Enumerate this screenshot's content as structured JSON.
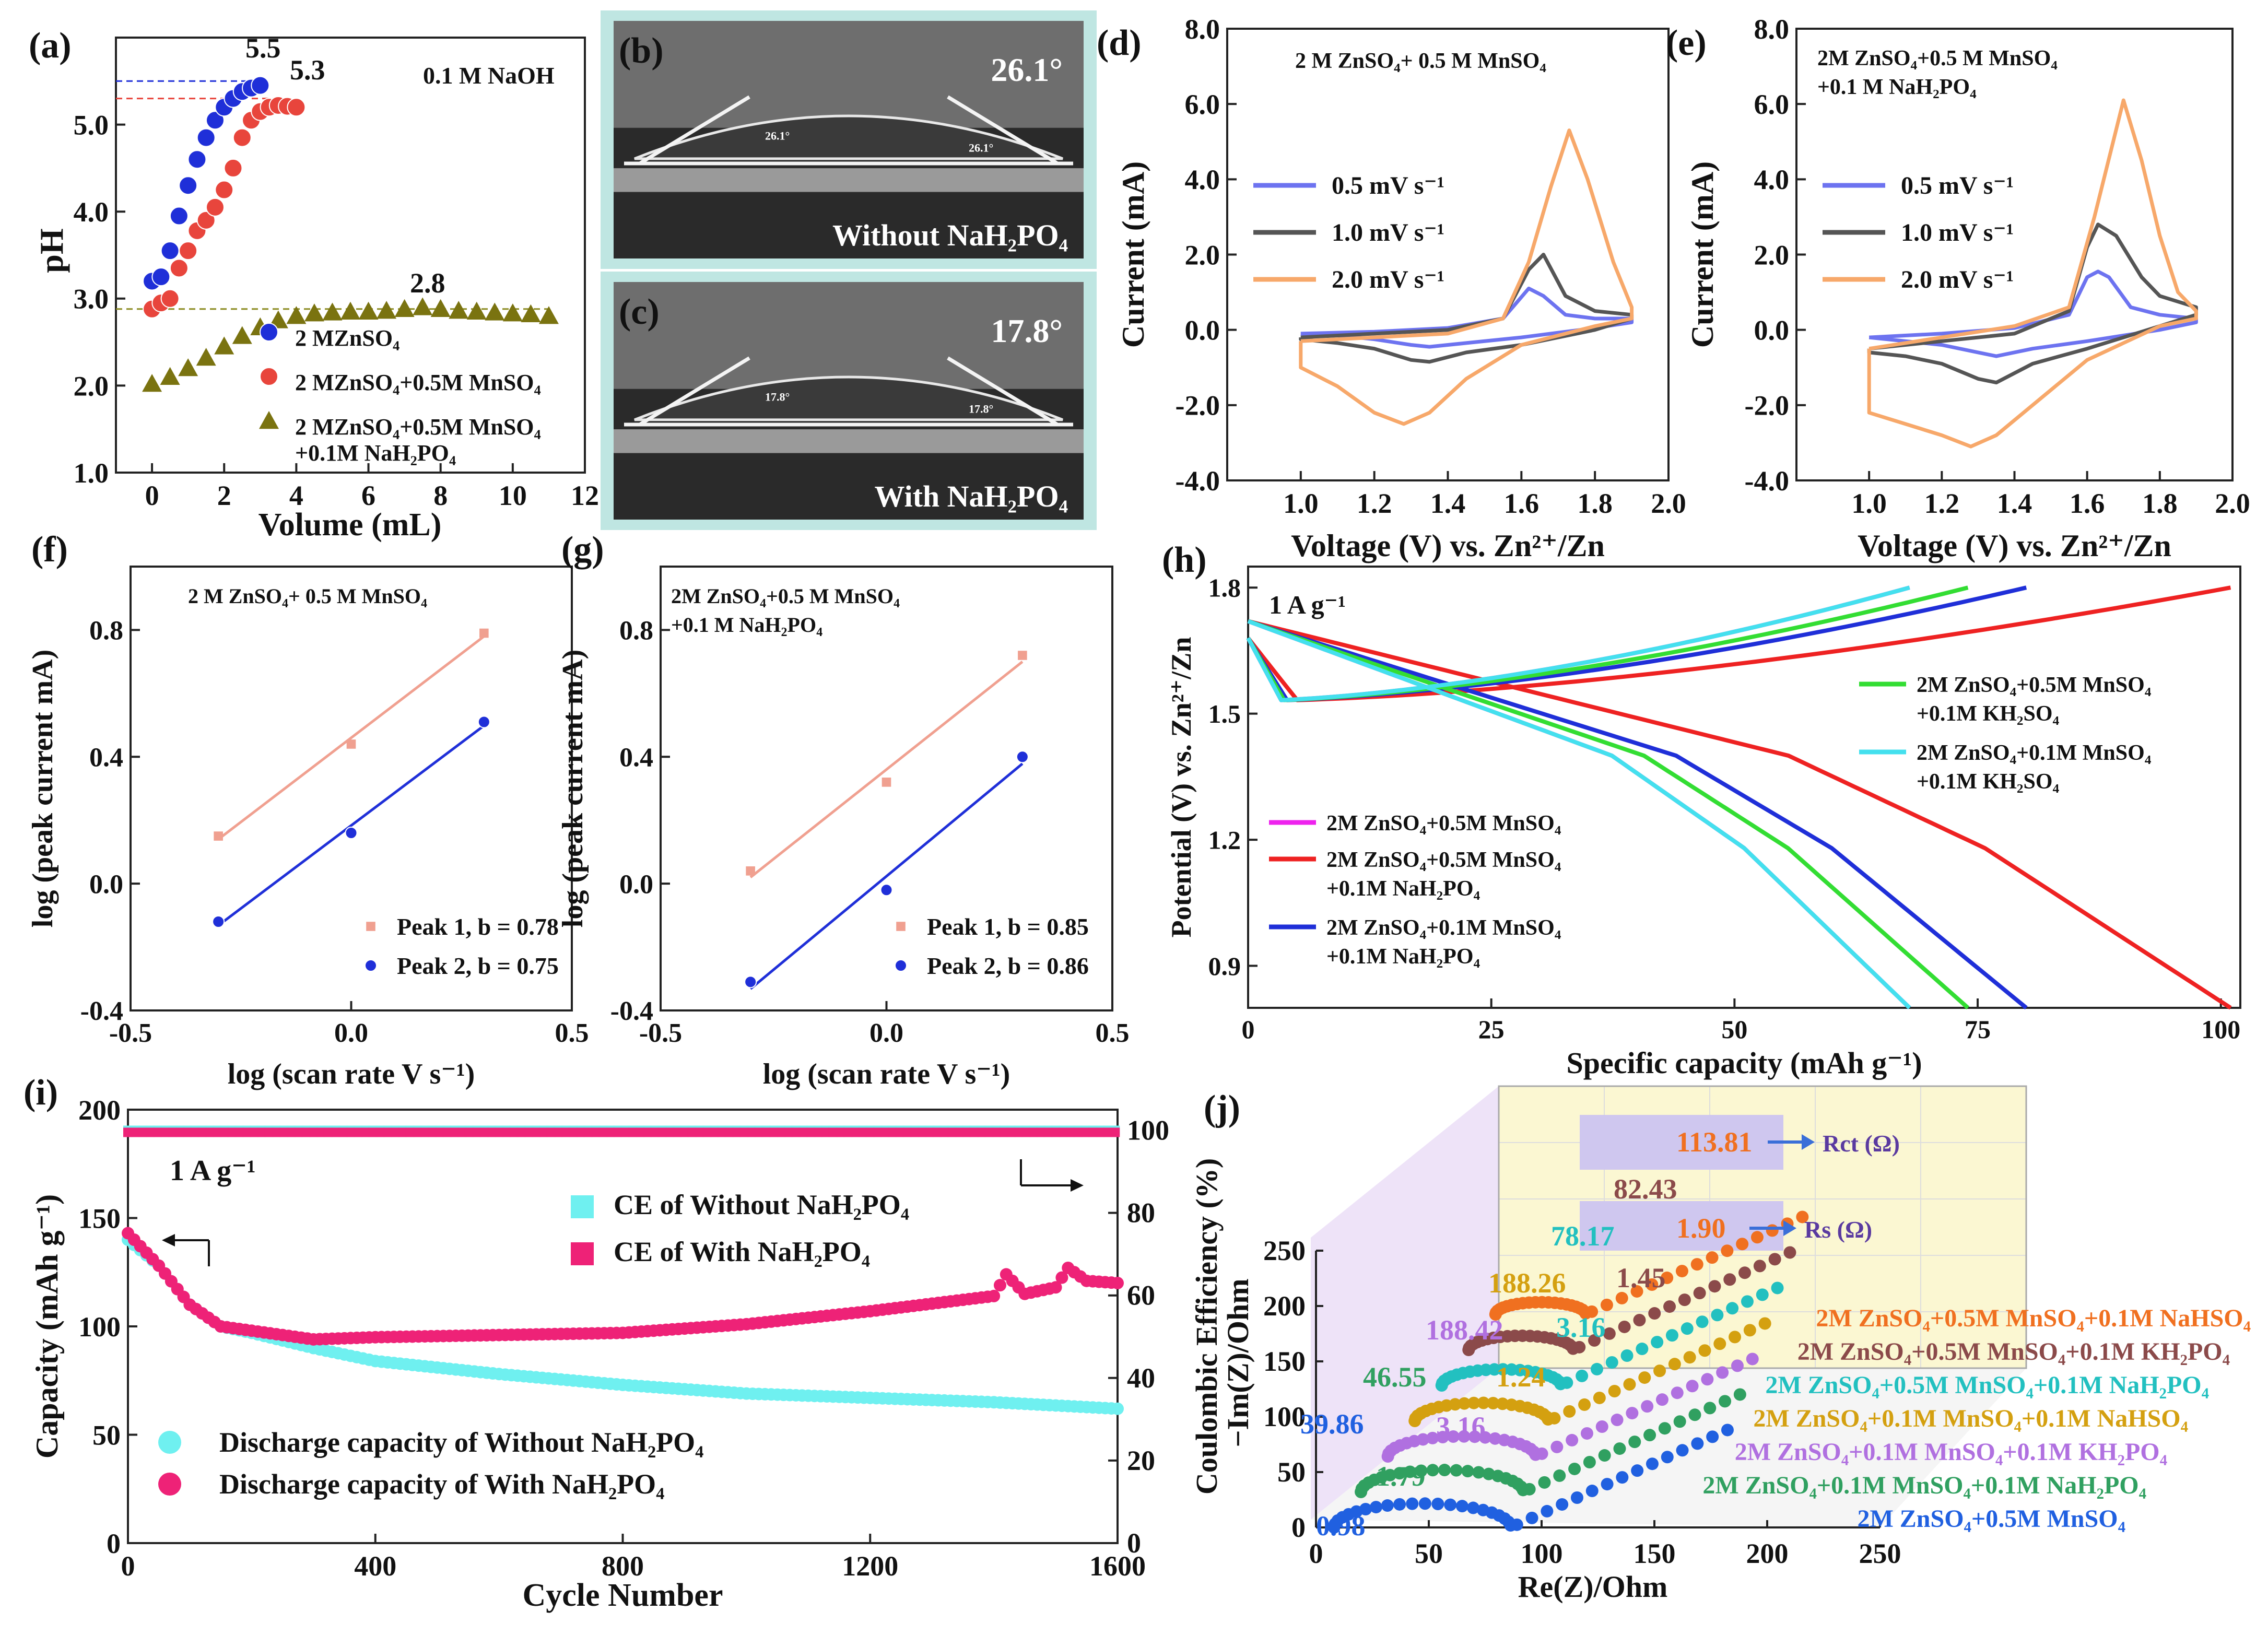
{
  "chart_data": [
    {
      "panel": "(a)",
      "type": "scatter",
      "title": "0.1 M NaOH",
      "xlabel": "Volume (mL)",
      "ylabel": "pH",
      "xlim": [
        -1,
        12
      ],
      "ylim": [
        1,
        6
      ],
      "xticks": [
        "0",
        "2",
        "4",
        "6",
        "8",
        "10",
        "12"
      ],
      "yticks": [
        "1.0",
        "2.0",
        "3.0",
        "4.0",
        "5.0"
      ],
      "annotations": [
        "5.5",
        "5.3",
        "2.8"
      ],
      "series": [
        {
          "name": "2 MZnSO₄",
          "color": "#1f2fd8",
          "marker": "circle",
          "x": [
            0,
            0.25,
            0.5,
            0.75,
            1,
            1.25,
            1.5,
            1.75,
            2,
            2.25,
            2.5,
            2.75,
            3
          ],
          "y": [
            3.2,
            3.25,
            3.55,
            3.95,
            4.3,
            4.6,
            4.85,
            5.05,
            5.2,
            5.3,
            5.38,
            5.42,
            5.45
          ]
        },
        {
          "name": "2 MZnSO₄+0.5M MnSO₄",
          "color": "#e8453c",
          "marker": "circle",
          "x": [
            0,
            0.25,
            0.5,
            0.75,
            1,
            1.25,
            1.5,
            1.75,
            2,
            2.25,
            2.5,
            2.75,
            3,
            3.25,
            3.5,
            3.75,
            4
          ],
          "y": [
            2.88,
            2.95,
            3.0,
            3.35,
            3.55,
            3.78,
            3.9,
            4.05,
            4.25,
            4.5,
            4.85,
            5.05,
            5.15,
            5.2,
            5.22,
            5.21,
            5.2
          ]
        },
        {
          "name": "2 MZnSO₄+0.5M MnSO₄ +0.1M NaH₂PO₄",
          "color": "#7a7310",
          "marker": "triangle",
          "x": [
            0,
            0.5,
            1,
            1.5,
            2,
            2.5,
            3,
            3.5,
            4,
            4.5,
            5,
            5.5,
            6,
            6.5,
            7,
            7.5,
            8,
            8.5,
            9,
            9.5,
            10,
            10.5,
            11
          ],
          "y": [
            2.02,
            2.1,
            2.2,
            2.32,
            2.45,
            2.57,
            2.67,
            2.75,
            2.8,
            2.83,
            2.84,
            2.85,
            2.85,
            2.86,
            2.88,
            2.9,
            2.88,
            2.86,
            2.85,
            2.84,
            2.83,
            2.82,
            2.8
          ]
        }
      ]
    },
    {
      "panel": "(b)",
      "type": "image",
      "angle_label": "26.1°",
      "small_labels": [
        "26.1°",
        "26.1°"
      ],
      "caption": "Without NaH₂PO₄"
    },
    {
      "panel": "(c)",
      "type": "image",
      "angle_label": "17.8°",
      "small_labels": [
        "17.8°",
        "17.8°"
      ],
      "caption": "With NaH₂PO₄"
    },
    {
      "panel": "(d)",
      "type": "line",
      "title": "2 M ZnSO₄+ 0.5 M MnSO₄",
      "xlabel": "Voltage (V) vs. Zn²⁺/Zn",
      "ylabel": "Current (mA)",
      "xlim": [
        0.8,
        2.0
      ],
      "ylim": [
        -4,
        8
      ],
      "xticks": [
        "1.0",
        "1.2",
        "1.4",
        "1.6",
        "1.8",
        "2.0"
      ],
      "yticks": [
        "-4.0",
        "-2.0",
        "0.0",
        "2.0",
        "4.0",
        "6.0",
        "8.0"
      ],
      "series": [
        {
          "name": "0.5 mV s⁻¹",
          "color": "#6d73f0",
          "x": [
            1.0,
            1.2,
            1.4,
            1.55,
            1.62,
            1.66,
            1.72,
            1.8,
            1.9,
            1.9,
            1.8,
            1.6,
            1.45,
            1.35,
            1.3,
            1.2,
            1.1,
            1.0
          ],
          "y": [
            -0.1,
            -0.05,
            0.05,
            0.3,
            1.1,
            0.9,
            0.4,
            0.3,
            0.3,
            0.2,
            0.05,
            -0.2,
            -0.35,
            -0.45,
            -0.4,
            -0.25,
            -0.15,
            -0.1
          ]
        },
        {
          "name": "1.0 mV s⁻¹",
          "color": "#555555",
          "x": [
            1.0,
            1.2,
            1.4,
            1.55,
            1.62,
            1.66,
            1.72,
            1.8,
            1.9,
            1.9,
            1.8,
            1.6,
            1.45,
            1.35,
            1.3,
            1.2,
            1.1,
            1.0
          ],
          "y": [
            -0.2,
            -0.1,
            0.0,
            0.3,
            1.6,
            2.0,
            0.9,
            0.5,
            0.4,
            0.3,
            0.0,
            -0.4,
            -0.6,
            -0.85,
            -0.8,
            -0.5,
            -0.35,
            -0.25
          ]
        },
        {
          "name": "2.0 mV s⁻¹",
          "color": "#f7a86a",
          "x": [
            1.0,
            1.2,
            1.4,
            1.55,
            1.62,
            1.68,
            1.73,
            1.78,
            1.85,
            1.9,
            1.9,
            1.8,
            1.6,
            1.45,
            1.35,
            1.28,
            1.2,
            1.1,
            1.0
          ],
          "y": [
            -0.3,
            -0.2,
            -0.1,
            0.3,
            1.8,
            3.8,
            5.3,
            4.0,
            1.8,
            0.6,
            0.3,
            0.1,
            -0.4,
            -1.3,
            -2.2,
            -2.5,
            -2.2,
            -1.5,
            -1.0
          ]
        }
      ]
    },
    {
      "panel": "(e)",
      "type": "line",
      "title": "2M ZnSO₄+0.5 M MnSO₄ +0.1 M NaH₂PO₄",
      "xlabel": "Voltage (V) vs. Zn²⁺/Zn",
      "ylabel": "Current (mA)",
      "xlim": [
        0.8,
        2.0
      ],
      "ylim": [
        -4,
        8
      ],
      "xticks": [
        "1.0",
        "1.2",
        "1.4",
        "1.6",
        "1.8",
        "2.0"
      ],
      "yticks": [
        "-4.0",
        "-2.0",
        "0.0",
        "2.0",
        "4.0",
        "6.0",
        "8.0"
      ],
      "series": [
        {
          "name": "0.5 mV s⁻¹",
          "color": "#6d73f0",
          "x": [
            1.0,
            1.2,
            1.4,
            1.55,
            1.6,
            1.63,
            1.66,
            1.72,
            1.8,
            1.9,
            1.9,
            1.8,
            1.6,
            1.45,
            1.35,
            1.3,
            1.2,
            1.1,
            1.0
          ],
          "y": [
            -0.2,
            -0.1,
            0.05,
            0.4,
            1.4,
            1.55,
            1.4,
            0.6,
            0.4,
            0.3,
            0.2,
            0.0,
            -0.3,
            -0.5,
            -0.7,
            -0.6,
            -0.4,
            -0.3,
            -0.2
          ]
        },
        {
          "name": "1.0 mV s⁻¹",
          "color": "#555555",
          "x": [
            1.0,
            1.2,
            1.4,
            1.55,
            1.6,
            1.63,
            1.68,
            1.75,
            1.8,
            1.9,
            1.9,
            1.8,
            1.6,
            1.45,
            1.35,
            1.3,
            1.2,
            1.1,
            1.0
          ],
          "y": [
            -0.5,
            -0.3,
            -0.1,
            0.5,
            2.2,
            2.8,
            2.5,
            1.4,
            0.9,
            0.6,
            0.4,
            0.1,
            -0.5,
            -0.9,
            -1.4,
            -1.3,
            -0.9,
            -0.7,
            -0.6
          ]
        },
        {
          "name": "2.0 mV s⁻¹",
          "color": "#f7a86a",
          "x": [
            1.0,
            1.2,
            1.4,
            1.55,
            1.62,
            1.7,
            1.75,
            1.8,
            1.85,
            1.9,
            1.9,
            1.8,
            1.6,
            1.45,
            1.35,
            1.28,
            1.2,
            1.1,
            1.0
          ],
          "y": [
            -0.5,
            -0.2,
            0.1,
            0.6,
            3.0,
            6.1,
            4.5,
            2.5,
            1.0,
            0.5,
            0.3,
            0.1,
            -0.8,
            -2.0,
            -2.8,
            -3.1,
            -2.8,
            -2.5,
            -2.2
          ]
        }
      ]
    },
    {
      "panel": "(f)",
      "type": "scatter",
      "title": "2 M ZnSO₄+ 0.5 M MnSO₄",
      "xlabel": "log (scan rate V s⁻¹)",
      "ylabel": "log (peak current mA)",
      "xlim": [
        -0.5,
        0.5
      ],
      "ylim": [
        -0.4,
        1.0
      ],
      "xticks": [
        "-0.5",
        "0.0",
        "0.5"
      ],
      "yticks": [
        "-0.4",
        "0.0",
        "0.4",
        "0.8"
      ],
      "series": [
        {
          "name": "Peak 1, b = 0.78",
          "color": "#f0a090",
          "marker": "square",
          "x": [
            -0.301,
            0,
            0.301
          ],
          "y": [
            0.15,
            0.44,
            0.79
          ]
        },
        {
          "name": "Peak 2, b = 0.75",
          "color": "#1f2fd8",
          "marker": "circle",
          "x": [
            -0.301,
            0,
            0.301
          ],
          "y": [
            -0.12,
            0.16,
            0.51
          ]
        }
      ]
    },
    {
      "panel": "(g)",
      "type": "scatter",
      "title": "2M ZnSO₄+0.5 M MnSO₄ +0.1 M NaH₂PO₄",
      "xlabel": "log (scan rate V s⁻¹)",
      "ylabel": "log (peak current mA)",
      "xlim": [
        -0.5,
        0.5
      ],
      "ylim": [
        -0.4,
        1.0
      ],
      "xticks": [
        "-0.5",
        "0.0",
        "0.5"
      ],
      "yticks": [
        "-0.4",
        "0.0",
        "0.4",
        "0.8"
      ],
      "series": [
        {
          "name": "Peak 1, b = 0.85",
          "color": "#f0a090",
          "marker": "square",
          "x": [
            -0.301,
            0,
            0.301
          ],
          "y": [
            0.04,
            0.32,
            0.72
          ]
        },
        {
          "name": "Peak 2, b = 0.86",
          "color": "#1f2fd8",
          "marker": "circle",
          "x": [
            -0.301,
            0,
            0.301
          ],
          "y": [
            -0.31,
            -0.02,
            0.4
          ]
        }
      ]
    },
    {
      "panel": "(h)",
      "type": "line",
      "annotation": "1 A g⁻¹",
      "xlabel": "Specific capacity (mAh g⁻¹)",
      "ylabel": "Potential (V) vs. Zn²⁺/Zn",
      "xlim": [
        0,
        102
      ],
      "ylim": [
        0.8,
        1.85
      ],
      "xticks": [
        "0",
        "25",
        "50",
        "75",
        "100"
      ],
      "yticks": [
        "0.9",
        "1.2",
        "1.5",
        "1.8"
      ],
      "series": [
        {
          "name": "2M ZnSO₄+0.5M MnSO₄",
          "color": "#ee22ee",
          "end_capacity": 68
        },
        {
          "name": "2M ZnSO₄+0.5M MnSO₄ +0.1M NaH₂PO₄",
          "color": "#ee2222",
          "end_capacity": 101
        },
        {
          "name": "2M ZnSO₄+0.1M MnSO₄ +0.1M NaH₂PO₄",
          "color": "#1f2fd8",
          "end_capacity": 80
        },
        {
          "name": "2M ZnSO₄+0.5M MnSO₄ +0.1M KH₂SO₄",
          "color": "#33dd33",
          "end_capacity": 74
        },
        {
          "name": "2M ZnSO₄+0.1M MnSO₄ +0.1M KH₂SO₄",
          "color": "#44e0ee",
          "end_capacity": 68
        }
      ]
    },
    {
      "panel": "(i)",
      "type": "scatter",
      "annotation": "1 A g⁻¹",
      "xlabel": "Cycle Number",
      "ylabel": "Capacity (mAh g⁻¹)",
      "y2label": "Coulombic Efficiency (%)",
      "xlim": [
        0,
        1600
      ],
      "ylim": [
        0,
        200
      ],
      "y2lim": [
        0,
        105
      ],
      "xticks": [
        "0",
        "400",
        "800",
        "1200",
        "1600"
      ],
      "yticks": [
        "0",
        "50",
        "100",
        "150",
        "200"
      ],
      "y2ticks": [
        "0",
        "20",
        "40",
        "60",
        "80",
        "100"
      ],
      "series": [
        {
          "name": "Discharge capacity of Without NaH₂PO₄",
          "color": "#6ff0f0",
          "x": [
            0,
            50,
            100,
            150,
            200,
            300,
            400,
            600,
            800,
            1000,
            1200,
            1400,
            1600
          ],
          "y": [
            140,
            128,
            110,
            100,
            97,
            90,
            84,
            78,
            73,
            69,
            67,
            65,
            62
          ]
        },
        {
          "name": "Discharge capacity of With NaH₂PO₄",
          "color": "#ee2277",
          "x": [
            0,
            50,
            100,
            150,
            200,
            300,
            400,
            600,
            800,
            1000,
            1200,
            1400,
            1420,
            1450,
            1500,
            1520,
            1550,
            1600
          ],
          "y": [
            143,
            128,
            110,
            100,
            98,
            94,
            95,
            96,
            97,
            101,
            107,
            114,
            124,
            115,
            118,
            127,
            121,
            120
          ]
        },
        {
          "name": "CE of Without NaH₂PO₄",
          "color": "#6ff0f0",
          "x": [
            0,
            1600
          ],
          "y": [
            100,
            100
          ]
        },
        {
          "name": "CE of With NaH₂PO₄",
          "color": "#ee2277",
          "x": [
            0,
            1600
          ],
          "y": [
            99.5,
            99.5
          ]
        }
      ]
    },
    {
      "panel": "(j)",
      "type": "scatter",
      "xlabel": "Re(Z)/Ohm",
      "ylabel": "−Im(Z)/Ohm",
      "xlim": [
        0,
        250
      ],
      "ylim": [
        0,
        250
      ],
      "xticks": [
        "0",
        "50",
        "100",
        "150",
        "200",
        "250"
      ],
      "yticks": [
        "0",
        "50",
        "100",
        "150",
        "200",
        "250"
      ],
      "rct_label": "Rct (Ω)",
      "rs_label": "Rs (Ω)",
      "rct_values": [
        {
          "text": "113.81",
          "color": "#f07020"
        },
        {
          "text": "82.43",
          "color": "#8b4a4a"
        },
        {
          "text": "78.17",
          "color": "#22c0c0"
        },
        {
          "text": "188.26",
          "color": "#d4a010"
        },
        {
          "text": "188.42",
          "color": "#b070e0"
        },
        {
          "text": "46.55",
          "color": "#30a060"
        },
        {
          "text": "39.86",
          "color": "#2060e0"
        }
      ],
      "rs_values": [
        {
          "text": "1.90",
          "color": "#f07020"
        },
        {
          "text": "1.45",
          "color": "#8b4a4a"
        },
        {
          "text": "3.16",
          "color": "#22c0c0"
        },
        {
          "text": "1.24",
          "color": "#d4a010"
        },
        {
          "text": "3.16",
          "color": "#b070e0"
        },
        {
          "text": "1.79",
          "color": "#30a060"
        },
        {
          "text": "0.98",
          "color": "#2060e0"
        }
      ],
      "series": [
        {
          "name": "2M ZnSO₄+0.5M MnSO₄+0.1M NaHSO₄",
          "color": "#f07020"
        },
        {
          "name": "2M ZnSO₄+0.5M MnSO₄+0.1M KH₂PO₄",
          "color": "#8b4a4a"
        },
        {
          "name": "2M ZnSO₄+0.5M MnSO₄+0.1M NaH₂PO₄",
          "color": "#22c0c0"
        },
        {
          "name": "2M ZnSO₄+0.1M MnSO₄+0.1M NaHSO₄",
          "color": "#d4a010"
        },
        {
          "name": "2M ZnSO₄+0.1M MnSO₄+0.1M KH₂PO₄",
          "color": "#b070e0"
        },
        {
          "name": "2M ZnSO₄+0.1M MnSO₄+0.1M NaH₂PO₄",
          "color": "#30a060"
        },
        {
          "name": "2M ZnSO₄+0.5M MnSO₄",
          "color": "#2060e0"
        }
      ]
    }
  ]
}
